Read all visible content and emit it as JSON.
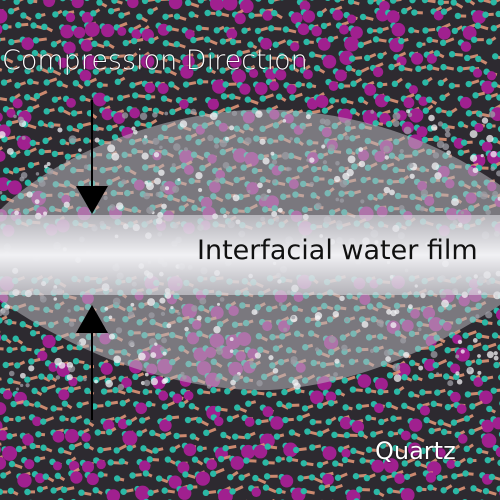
{
  "labels": {
    "compression": "Compression Direction",
    "water_film": "Interfacial water film",
    "material": "Quartz"
  },
  "colors": {
    "background": "#2d2a30",
    "oxygen_atom": "#2bb9a6",
    "silicon_atom": "#a0208f",
    "bond": "#e89a7a",
    "water_film": "#e8e8ec",
    "arrow": "#000000"
  }
}
